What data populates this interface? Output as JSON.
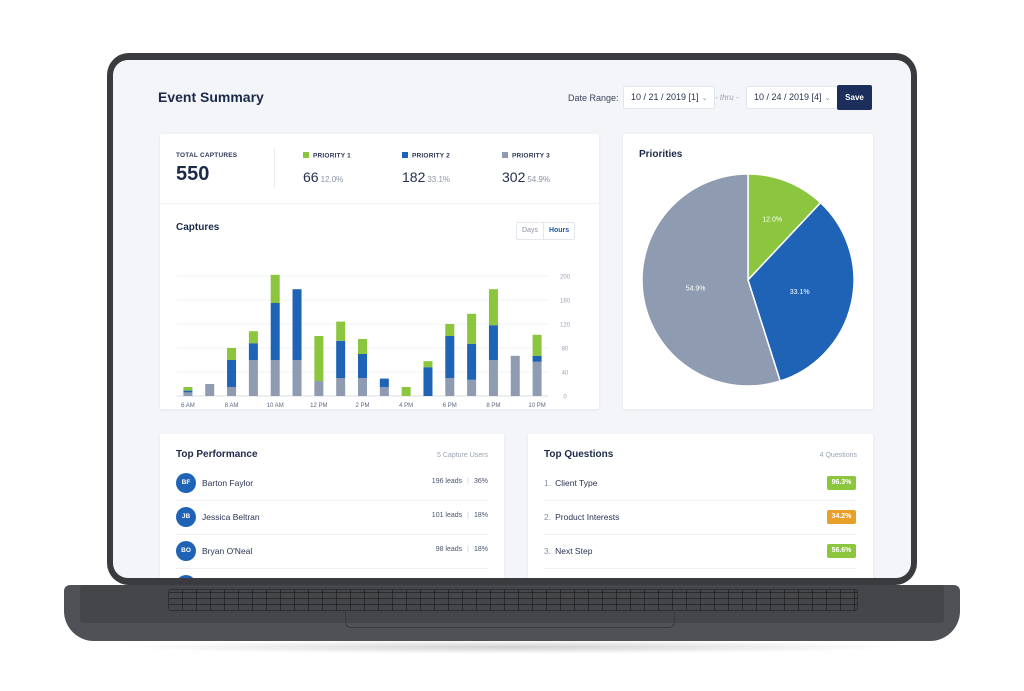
{
  "header": {
    "title": "Event Summary",
    "date_range_label": "Date Range:",
    "start_date": "10 / 21 / 2019 [1]",
    "thru_label": "- thru -",
    "end_date": "10 / 24 / 2019 [4]",
    "save_label": "Save"
  },
  "stats": {
    "total_label": "TOTAL CAPTURES",
    "total_value": "550",
    "priorities": [
      {
        "label": "PRIORITY 1",
        "value": "66",
        "pct": "12.0%",
        "color": "#8cc63f"
      },
      {
        "label": "PRIORITY 2",
        "value": "182",
        "pct": "33.1%",
        "color": "#1f63b6"
      },
      {
        "label": "PRIORITY 3",
        "value": "302",
        "pct": "54.9%",
        "color": "#8f9bb1"
      }
    ]
  },
  "captures": {
    "title": "Captures",
    "toggle_days": "Days",
    "toggle_hours": "Hours",
    "selected": "Hours"
  },
  "priorities_card": {
    "title": "Priorities"
  },
  "top_performance": {
    "title": "Top Performance",
    "count_label": "5 Capture Users",
    "users": [
      {
        "initials": "BF",
        "name": "Barton Faylor",
        "leads": "196 leads",
        "pct": "36%"
      },
      {
        "initials": "JB",
        "name": "Jessica Beltran",
        "leads": "101 leads",
        "pct": "18%"
      },
      {
        "initials": "BO",
        "name": "Bryan O'Neal",
        "leads": "98 leads",
        "pct": "18%"
      }
    ]
  },
  "top_questions": {
    "title": "Top Questions",
    "count_label": "4 Questions",
    "questions": [
      {
        "num": "1.",
        "text": "Client Type",
        "pct": "96.3%",
        "color": "#8cc63f"
      },
      {
        "num": "2.",
        "text": "Product Interests",
        "pct": "34.2%",
        "color": "#e8a02a"
      },
      {
        "num": "3.",
        "text": "Next Step",
        "pct": "56.6%",
        "color": "#8cc63f"
      }
    ]
  },
  "chart_data": [
    {
      "type": "bar",
      "title": "Captures",
      "stacked": true,
      "categories": [
        "6 AM",
        "7 AM",
        "8 AM",
        "9 AM",
        "10 AM",
        "11 AM",
        "12 PM",
        "1 PM",
        "2 PM",
        "3 PM",
        "4 PM",
        "5 PM",
        "6 PM",
        "7 PM",
        "8 PM",
        "9 PM",
        "10 PM"
      ],
      "x_tick_labels": [
        "6 AM",
        "8 AM",
        "10 AM",
        "12 PM",
        "2 PM",
        "4 PM",
        "6 PM",
        "8 PM",
        "10 PM"
      ],
      "series": [
        {
          "color": "#8f9bb1",
          "values": [
            6,
            20,
            15,
            60,
            60,
            60,
            25,
            30,
            30,
            15,
            0,
            0,
            30,
            27,
            60,
            67,
            57
          ]
        },
        {
          "color": "#1f63b6",
          "values": [
            3,
            0,
            45,
            28,
            95,
            118,
            0,
            62,
            40,
            14,
            0,
            48,
            70,
            60,
            58,
            0,
            10
          ]
        },
        {
          "color": "#8cc63f",
          "values": [
            6,
            0,
            20,
            20,
            47,
            0,
            75,
            32,
            25,
            0,
            15,
            10,
            20,
            50,
            60,
            0,
            35
          ]
        }
      ],
      "ylim": [
        0,
        200
      ],
      "yticks": [
        0,
        40,
        80,
        120,
        160,
        200
      ],
      "grid": true
    },
    {
      "type": "pie",
      "title": "Priorities",
      "labels": [
        "PRIORITY 1",
        "PRIORITY 2",
        "PRIORITY 3"
      ],
      "values": [
        12.0,
        33.1,
        54.9
      ],
      "slice_labels": [
        "12.0%",
        "33.1%",
        "54.9%"
      ],
      "colors": [
        "#8cc63f",
        "#1f63b6",
        "#8f9bb1"
      ]
    }
  ]
}
